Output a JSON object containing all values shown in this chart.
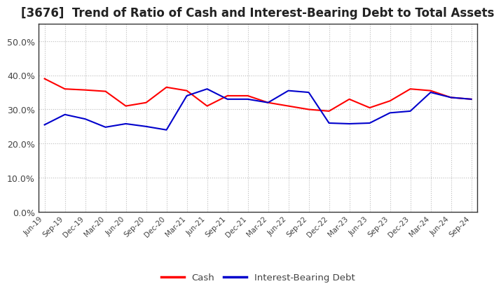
{
  "title": "[3676]  Trend of Ratio of Cash and Interest-Bearing Debt to Total Assets",
  "x_labels": [
    "Jun-19",
    "Sep-19",
    "Dec-19",
    "Mar-20",
    "Jun-20",
    "Sep-20",
    "Dec-20",
    "Mar-21",
    "Jun-21",
    "Sep-21",
    "Dec-21",
    "Mar-22",
    "Jun-22",
    "Sep-22",
    "Dec-22",
    "Mar-23",
    "Jun-23",
    "Sep-23",
    "Dec-23",
    "Mar-24",
    "Jun-24",
    "Sep-24"
  ],
  "cash": [
    0.39,
    0.36,
    0.357,
    0.353,
    0.31,
    0.32,
    0.365,
    0.355,
    0.31,
    0.34,
    0.34,
    0.32,
    0.31,
    0.3,
    0.295,
    0.33,
    0.305,
    0.325,
    0.36,
    0.355,
    0.335,
    0.33
  ],
  "ibd": [
    0.255,
    0.285,
    0.272,
    0.248,
    0.258,
    0.25,
    0.24,
    0.34,
    0.36,
    0.33,
    0.33,
    0.32,
    0.355,
    0.35,
    0.26,
    0.258,
    0.26,
    0.29,
    0.295,
    0.35,
    0.335,
    0.33
  ],
  "cash_color": "#FF0000",
  "ibd_color": "#0000CC",
  "background_color": "#FFFFFF",
  "plot_bg_color": "#FFFFFF",
  "grid_color": "#BBBBBB",
  "ylim": [
    0.0,
    0.55
  ],
  "yticks": [
    0.0,
    0.1,
    0.2,
    0.3,
    0.4,
    0.5
  ],
  "title_fontsize": 12,
  "title_color": "#222222",
  "tick_color": "#444444",
  "legend_labels": [
    "Cash",
    "Interest-Bearing Debt"
  ]
}
